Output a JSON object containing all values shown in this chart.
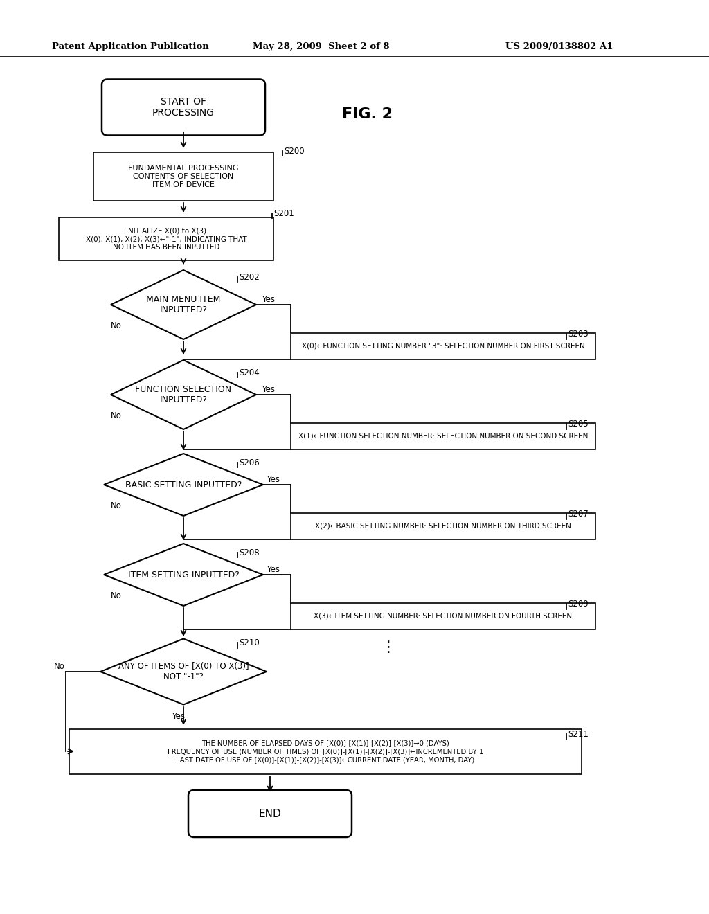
{
  "bg_color": "#ffffff",
  "header_left": "Patent Application Publication",
  "header_mid": "May 28, 2009  Sheet 2 of 8",
  "header_right": "US 2009/0138802 A1",
  "fig_label": "FIG. 2"
}
